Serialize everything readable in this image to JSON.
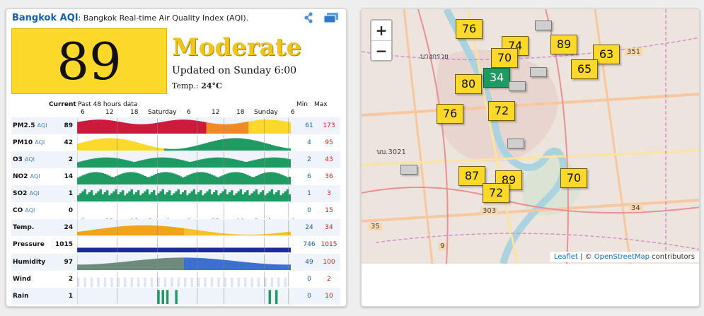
{
  "header": {
    "city_title": "Bangkok AQI",
    "subtitle": ": Bangkok Real-time Air Quality Index (AQI).",
    "share_icon": "share-icon",
    "windows_icon": "windows-icon"
  },
  "summary": {
    "aqi_value": "89",
    "level": "Moderate",
    "updated": "Updated on Sunday 6:00",
    "temp_label": "Temp.: ",
    "temp_value": "24°C",
    "aqi_color": "#fcd82a",
    "level_color": "#efc41e"
  },
  "table": {
    "current_label": "Current",
    "history_label": "Past 48 hours data",
    "min_label": "Min",
    "max_label": "Max",
    "axis_labels": [
      "6",
      "12",
      "18",
      "Saturday",
      "6",
      "12",
      "18",
      "Sunday",
      "6"
    ],
    "rows": [
      {
        "name": "PM2.5",
        "unit": "AQI",
        "current": "89",
        "min": "61",
        "max": "173"
      },
      {
        "name": "PM10",
        "unit": "AQI",
        "current": "42",
        "min": "4",
        "max": "95"
      },
      {
        "name": "O3",
        "unit": "AQI",
        "current": "2",
        "min": "2",
        "max": "43"
      },
      {
        "name": "NO2",
        "unit": "AQI",
        "current": "14",
        "min": "6",
        "max": "36"
      },
      {
        "name": "SO2",
        "unit": "AQI",
        "current": "1",
        "min": "1",
        "max": "3"
      },
      {
        "name": "CO",
        "unit": "AQI",
        "current": "0",
        "min": "0",
        "max": "15"
      },
      {
        "name": "Temp.",
        "unit": "",
        "current": "24",
        "min": "24",
        "max": "34"
      },
      {
        "name": "Pressure",
        "unit": "",
        "current": "1015",
        "min": "746",
        "max": "1015"
      },
      {
        "name": "Humidity",
        "unit": "",
        "current": "97",
        "min": "49",
        "max": "100"
      },
      {
        "name": "Wind",
        "unit": "",
        "current": "2",
        "min": "0",
        "max": "2"
      },
      {
        "name": "Rain",
        "unit": "",
        "current": "1",
        "min": "0",
        "max": "10"
      }
    ]
  },
  "map": {
    "zoom_in": "+",
    "zoom_out": "−",
    "markers": [
      "76",
      "74",
      "89",
      "63",
      "70",
      "65",
      "34",
      "80",
      "76",
      "72",
      "87",
      "89",
      "72",
      "70"
    ],
    "attribution_leaflet": "Leaflet",
    "attribution_sep": " | © ",
    "attribution_osm": "OpenStreetMap",
    "attribution_contrib": " contributors",
    "labels": [
      "บางกรวย",
      "351",
      "34",
      "35",
      "9",
      "303",
      "นบ.3021"
    ]
  }
}
